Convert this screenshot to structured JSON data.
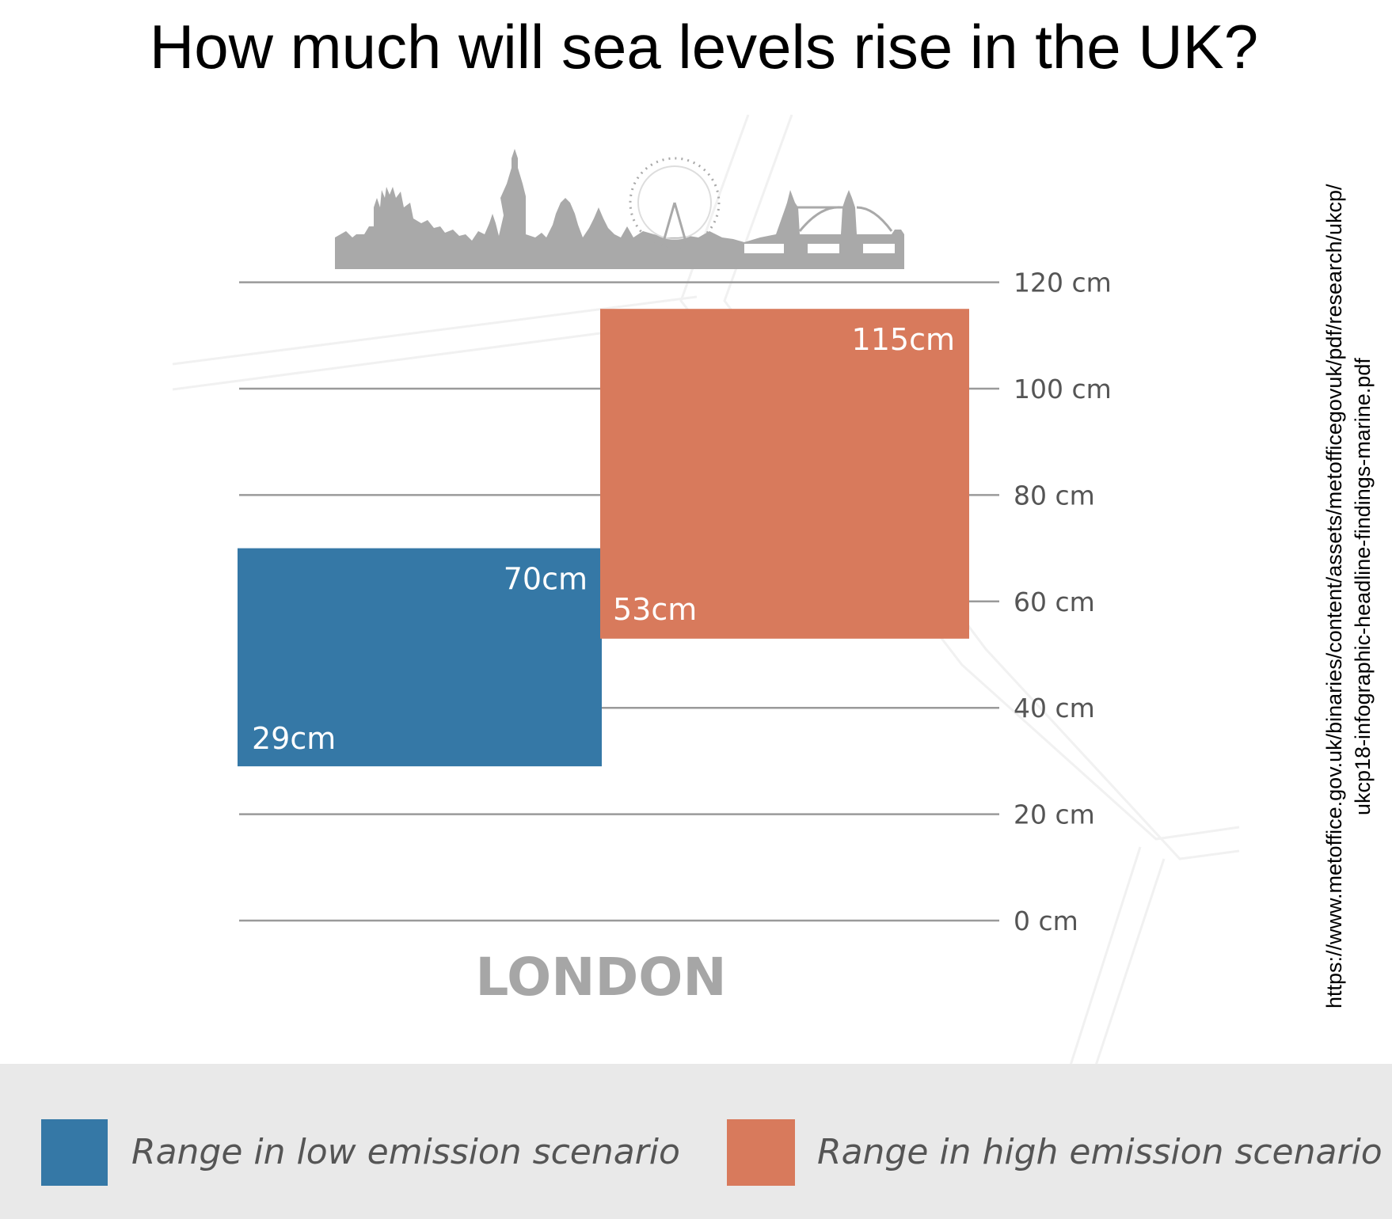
{
  "title": "How much will sea levels rise in the UK?",
  "city_label": "LONDON",
  "source_lines": [
    "https://www.metoffice.gov.uk/binaries/content/assets/metofficegovuk/pdf/research/ukcp/",
    "ukcp18-infographic-headline-findings-marine.pdf"
  ],
  "colors": {
    "low": "#3578a6",
    "high": "#d87a5c",
    "grid": "#9a9a9a",
    "legend_band": "#e9e9e9",
    "skyline": "#a9a9a9"
  },
  "icons": {
    "skyline": "london-skyline-icon"
  },
  "chart_data": {
    "type": "bar",
    "title": "How much will sea levels rise in the UK?",
    "categories": [
      "LONDON"
    ],
    "yticks": [
      {
        "value": 0,
        "label": "0 cm"
      },
      {
        "value": 20,
        "label": "20 cm"
      },
      {
        "value": 40,
        "label": "40 cm"
      },
      {
        "value": 60,
        "label": "60 cm"
      },
      {
        "value": 80,
        "label": "80 cm"
      },
      {
        "value": 100,
        "label": "100 cm"
      },
      {
        "value": 120,
        "label": "120 cm"
      }
    ],
    "ylim": [
      0,
      120
    ],
    "grid": true,
    "legend_position": "bottom",
    "series": [
      {
        "name": "Range in low emission scenario",
        "color": "#3578a6",
        "low": 29,
        "high": 70,
        "low_label": "29cm",
        "high_label": "70cm"
      },
      {
        "name": "Range in high emission scenario",
        "color": "#d87a5c",
        "low": 53,
        "high": 115,
        "low_label": "53cm",
        "high_label": "115cm"
      }
    ]
  }
}
